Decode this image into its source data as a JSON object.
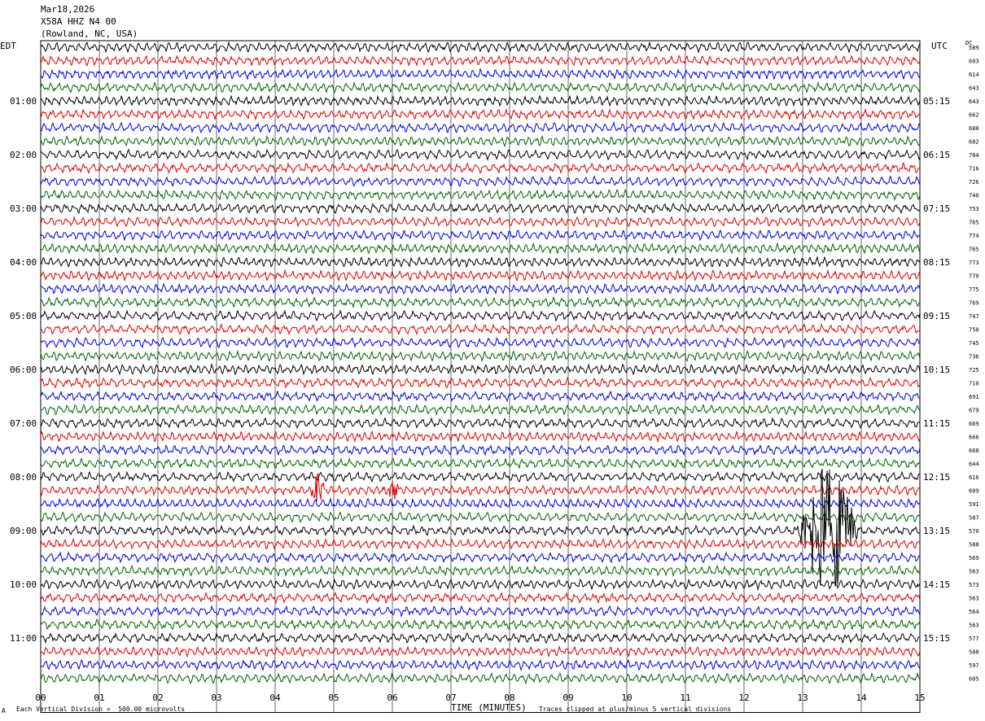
{
  "header": {
    "date": "Mar18,2026",
    "station": "X58A HHZ N4 00",
    "location": "(Rowland, NC, USA)"
  },
  "footer": {
    "vertical_division": "Each Vertical Division =  500.00 microvolts",
    "clip_note": "Traces clipped at plus/minus 5 vertical divisions",
    "small_mark": "A"
  },
  "chart_data": {
    "type": "line",
    "title": "",
    "xlabel": "TIME (MINUTES)",
    "left_axis_label": "EDT",
    "right_axis_label": "UTC",
    "dc_label": "DC",
    "xlim": [
      0,
      15
    ],
    "x_ticks": [
      "00",
      "01",
      "02",
      "03",
      "04",
      "05",
      "06",
      "07",
      "08",
      "09",
      "10",
      "11",
      "12",
      "13",
      "14",
      "15"
    ],
    "grid": true,
    "trace_colors": [
      "#000000",
      "#e00000",
      "#0000e0",
      "#006400"
    ],
    "edt_labels": [
      {
        "row": 4,
        "text": "01:00"
      },
      {
        "row": 8,
        "text": "02:00"
      },
      {
        "row": 12,
        "text": "03:00"
      },
      {
        "row": 16,
        "text": "04:00"
      },
      {
        "row": 20,
        "text": "05:00"
      },
      {
        "row": 24,
        "text": "06:00"
      },
      {
        "row": 28,
        "text": "07:00"
      },
      {
        "row": 32,
        "text": "08:00"
      },
      {
        "row": 36,
        "text": "09:00"
      },
      {
        "row": 40,
        "text": "10:00"
      },
      {
        "row": 44,
        "text": "11:00"
      }
    ],
    "utc_labels": [
      {
        "row": 4,
        "text": "05:15"
      },
      {
        "row": 8,
        "text": "06:15"
      },
      {
        "row": 12,
        "text": "07:15"
      },
      {
        "row": 16,
        "text": "08:15"
      },
      {
        "row": 20,
        "text": "09:15"
      },
      {
        "row": 24,
        "text": "10:15"
      },
      {
        "row": 28,
        "text": "11:15"
      },
      {
        "row": 32,
        "text": "12:15"
      },
      {
        "row": 36,
        "text": "13:15"
      },
      {
        "row": 40,
        "text": "14:15"
      },
      {
        "row": 44,
        "text": "15:15"
      }
    ],
    "dc_values": [
      "589",
      "603",
      "614",
      "643",
      "643",
      "662",
      "680",
      "682",
      "704",
      "716",
      "726",
      "740",
      "753",
      "765",
      "774",
      "765",
      "773",
      "770",
      "775",
      "769",
      "747",
      "750",
      "745",
      "736",
      "725",
      "710",
      "691",
      "679",
      "669",
      "666",
      "668",
      "644",
      "616",
      "609",
      "591",
      "587",
      "570",
      "588",
      "569",
      "563",
      "573",
      "563",
      "564",
      "563",
      "577",
      "588",
      "597",
      "605"
    ],
    "events": [
      {
        "row": 33,
        "start_min": 4.6,
        "end_min": 5.0,
        "amplitude": 18
      },
      {
        "row": 33,
        "start_min": 5.8,
        "end_min": 6.4,
        "amplitude": 12
      },
      {
        "row": 36,
        "start_min": 12.9,
        "end_min": 14.6,
        "amplitude": 80
      }
    ]
  }
}
